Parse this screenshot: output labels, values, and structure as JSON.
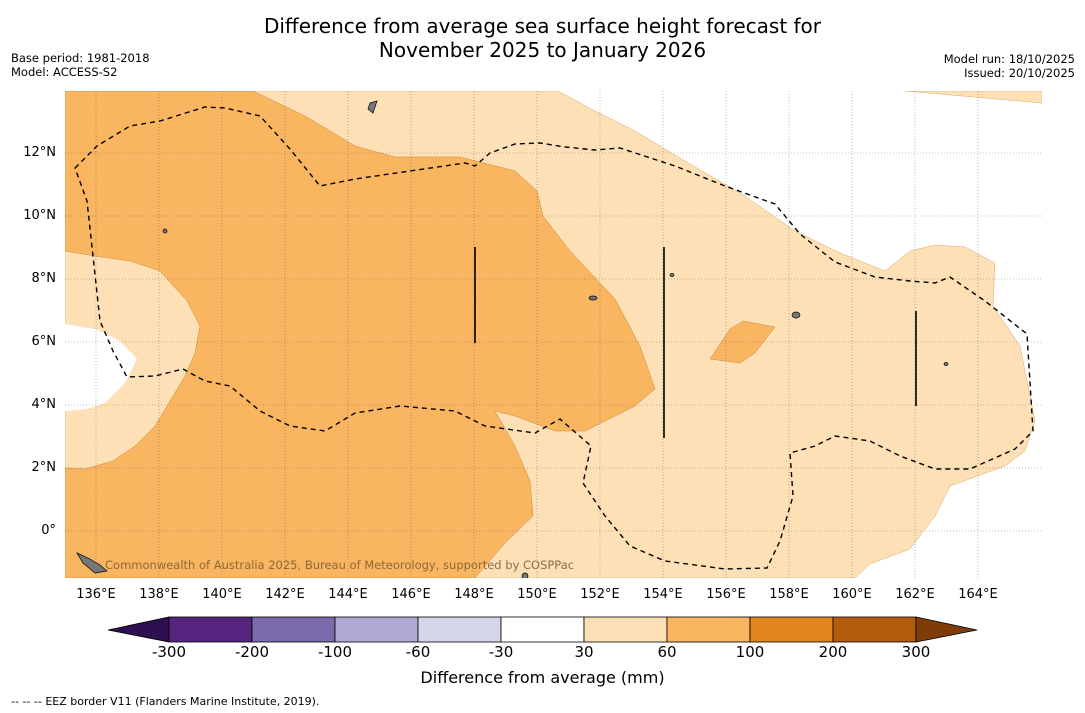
{
  "title": {
    "line1": "Difference from average sea surface height forecast for",
    "line2": "November 2025 to January 2026"
  },
  "meta": {
    "base_period": "Base period: 1981-2018",
    "model": "Model: ACCESS-S2",
    "model_run": "Model run: 18/10/2025",
    "issued": "Issued: 20/10/2025"
  },
  "map": {
    "latitude_labels": [
      "12°N",
      "10°N",
      "8°N",
      "6°N",
      "4°N",
      "2°N",
      "0°"
    ],
    "longitude_labels": [
      "136°E",
      "138°E",
      "140°E",
      "142°E",
      "144°E",
      "146°E",
      "148°E",
      "150°E",
      "152°E",
      "154°E",
      "156°E",
      "158°E",
      "160°E",
      "162°E",
      "164°E"
    ],
    "credit": "Commonwealth of Australia 2025, Bureau of Meteorology, supported by COSPPac"
  },
  "colorbar": {
    "labels": [
      "-300",
      "-200",
      "-100",
      "-60",
      "-30",
      "30",
      "60",
      "100",
      "200",
      "300"
    ],
    "title": "Difference from average (mm)",
    "colors": [
      "#2e0f4f",
      "#54247e",
      "#7c6baa",
      "#b0a8d2",
      "#d6d6ea",
      "#ffffff",
      "#fde0b6",
      "#f9b55f",
      "#e1861d",
      "#b35d0c",
      "#7f3c08"
    ]
  },
  "legend": {
    "eez_marker": "--  --  --",
    "eez_text": "EEZ border V11 (Flanders Marine Institute, 2019)."
  }
}
